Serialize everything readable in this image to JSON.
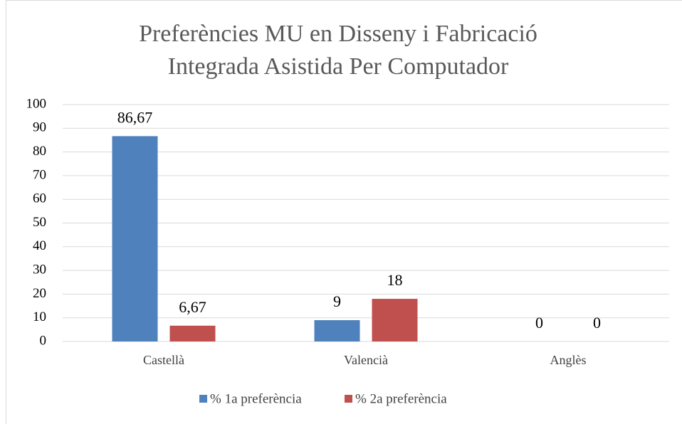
{
  "chart_data": {
    "type": "bar",
    "title": [
      "Preferències MU en Disseny i Fabricació",
      "Integrada Asistida Per Computador"
    ],
    "categories": [
      "Castellà",
      "Valencià",
      "Anglès"
    ],
    "series": [
      {
        "name": "% 1a preferència",
        "color": "#4f81bd",
        "values": [
          86.67,
          9,
          0
        ],
        "value_labels": [
          "86,67",
          "9",
          "0"
        ]
      },
      {
        "name": "% 2a preferència",
        "color": "#c0504d",
        "values": [
          6.67,
          18,
          0
        ],
        "value_labels": [
          "6,67",
          "18",
          "0"
        ]
      }
    ],
    "ylim": [
      0,
      100
    ],
    "yticks": [
      0,
      10,
      20,
      30,
      40,
      50,
      60,
      70,
      80,
      90,
      100
    ],
    "grid": true,
    "legend": "bottom"
  }
}
